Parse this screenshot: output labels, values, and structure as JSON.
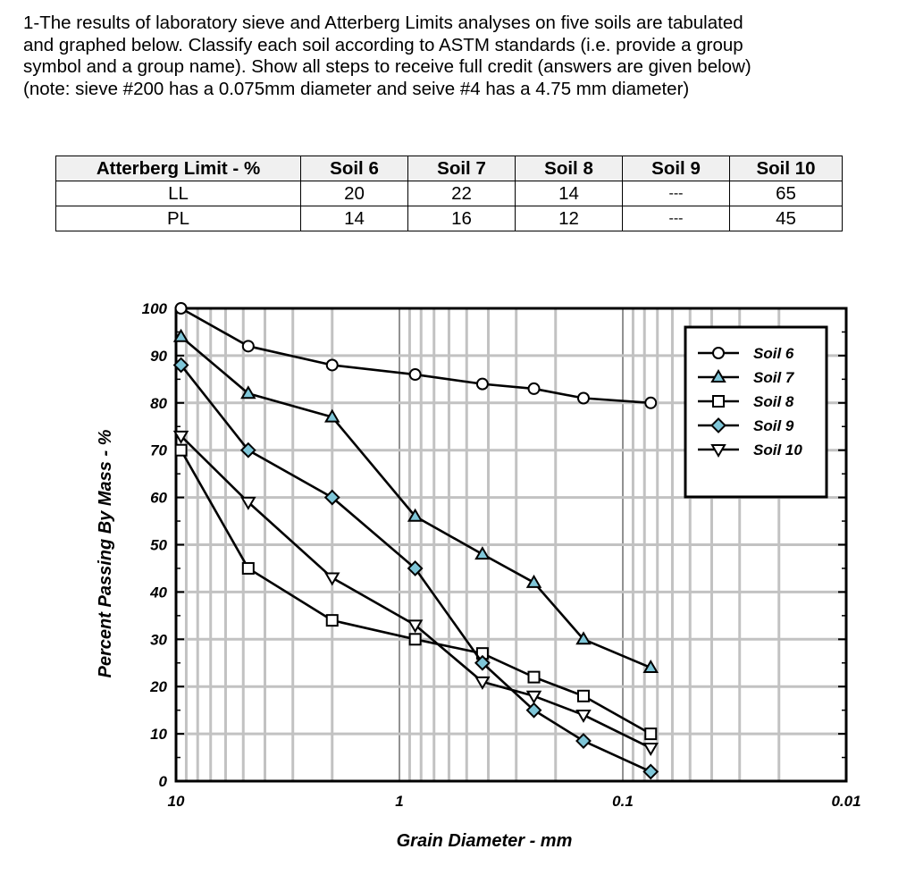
{
  "problem": {
    "lines": [
      "1-The results of laboratory sieve and Atterberg Limits analyses on five soils are tabulated",
      "and graphed below.  Classify each soil according to ASTM standards (i.e. provide a group",
      "symbol and a group name). Show all steps to receive full credit (answers are given below)",
      "(note: sieve #200 has a 0.075mm diameter and seive #4 has a 4.75 mm diameter)"
    ]
  },
  "limits_table": {
    "headers": [
      "Atterberg Limit - %",
      "Soil 6",
      "Soil 7",
      "Soil 8",
      "Soil 9",
      "Soil 10"
    ],
    "rows": [
      [
        "LL",
        "20",
        "22",
        "14",
        "---",
        "65"
      ],
      [
        "PL",
        "14",
        "16",
        "12",
        "---",
        "45"
      ]
    ]
  },
  "chart_data": {
    "type": "line",
    "title": "",
    "xlabel": "Grain Diameter - mm",
    "ylabel": "Percent Passing By Mass - %",
    "xscale": "log",
    "x_direction": "decreasing",
    "xlim": [
      10,
      0.01
    ],
    "ylim": [
      0,
      100
    ],
    "x_tick_labels": [
      "10",
      "1",
      "0.1",
      "0.01"
    ],
    "y_tick_labels": [
      "0",
      "10",
      "20",
      "30",
      "40",
      "50",
      "60",
      "70",
      "80",
      "90",
      "100"
    ],
    "grid": true,
    "legend_position": "top-right",
    "series": [
      {
        "name": "Soil 6",
        "marker": "circle",
        "fill": "#ffffff",
        "x": [
          9.5,
          4.75,
          2.0,
          0.85,
          0.425,
          0.25,
          0.15,
          0.075
        ],
        "y": [
          100,
          92,
          88,
          86,
          84,
          83,
          81,
          80
        ]
      },
      {
        "name": "Soil 7",
        "marker": "triangle-up",
        "fill": "#7fc6d8",
        "x": [
          9.5,
          4.75,
          2.0,
          0.85,
          0.425,
          0.25,
          0.15,
          0.075
        ],
        "y": [
          94,
          82,
          77,
          56,
          48,
          42,
          30,
          24
        ]
      },
      {
        "name": "Soil 8",
        "marker": "square",
        "fill": "#ffffff",
        "x": [
          9.5,
          4.75,
          2.0,
          0.85,
          0.425,
          0.25,
          0.15,
          0.075
        ],
        "y": [
          70,
          45,
          34,
          30,
          27,
          22,
          18,
          10
        ]
      },
      {
        "name": "Soil 9",
        "marker": "diamond",
        "fill": "#7fc6d8",
        "x": [
          9.5,
          4.75,
          2.0,
          0.85,
          0.425,
          0.25,
          0.15,
          0.075
        ],
        "y": [
          88,
          70,
          60,
          45,
          25,
          15,
          8.5,
          2
        ]
      },
      {
        "name": "Soil 10",
        "marker": "triangle-down",
        "fill": "#ffffff",
        "x": [
          9.5,
          4.75,
          2.0,
          0.85,
          0.425,
          0.25,
          0.15,
          0.075
        ],
        "y": [
          73,
          59,
          43,
          33,
          21,
          18,
          14,
          7
        ]
      }
    ]
  }
}
